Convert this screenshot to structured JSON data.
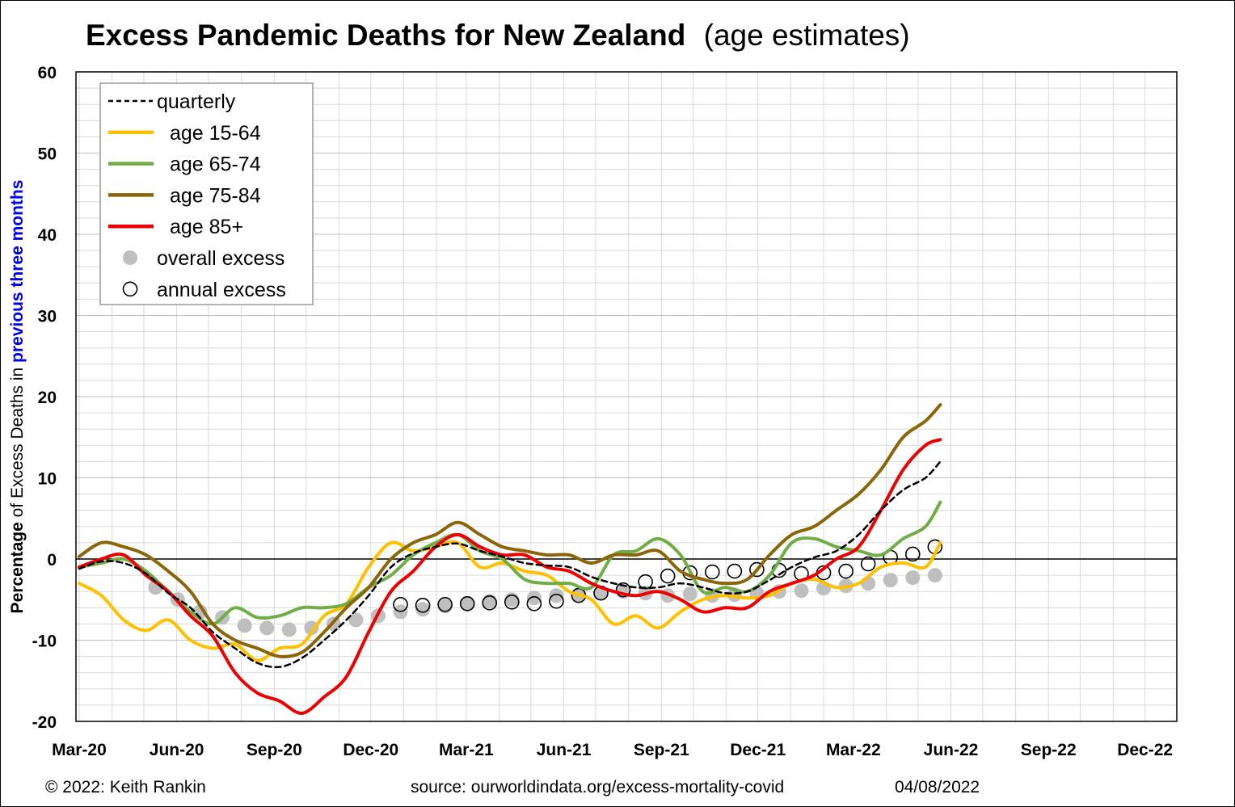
{
  "title_main": "Excess Pandemic Deaths for New Zealand",
  "title_sub": "(age estimates)",
  "ylabel_parts": {
    "bold1": "Percentage",
    "normal": " of Excess Deaths in ",
    "blue": "previous three months"
  },
  "footer": {
    "copyright": "© 2022: Keith Rankin",
    "source": "source: ourworldindata.org/excess-mortality-covid",
    "date": "04/08/2022"
  },
  "colors": {
    "quarterly": "#000000",
    "age_15_64": "#FFC000",
    "age_65_74": "#70AD47",
    "age_75_84": "#8B6508",
    "age_85_plus": "#EE0000",
    "overall": "#BFBFBF",
    "annual": "#000000",
    "ylabel_blue": "#0000EE"
  },
  "chart_data": {
    "type": "line",
    "title": "Excess Pandemic Deaths for New Zealand (age estimates)",
    "xlabel": "",
    "ylabel": "Percentage of Excess Deaths in previous three months",
    "ylim": [
      -20,
      60
    ],
    "yticks": [
      "60",
      "50",
      "40",
      "30",
      "20",
      "10",
      "0",
      "-10",
      "-20"
    ],
    "xlim": [
      "2020-02-27",
      "2022-12-31"
    ],
    "xticks": [
      "Mar-20",
      "Jun-20",
      "Sep-20",
      "Dec-20",
      "Mar-21",
      "Jun-21",
      "Sep-21",
      "Dec-21",
      "Mar-22",
      "Jun-22",
      "Sep-22",
      "Dec-22"
    ],
    "grid": true,
    "legend_position": "top-left",
    "legend": [
      "quarterly",
      "age 15-64",
      "age 65-74",
      "age 75-84",
      "age 85+",
      "overall excess",
      "annual excess"
    ],
    "series": [
      {
        "name": "quarterly",
        "style": "dashed",
        "x": [
          "2020-03-01",
          "2020-03-22",
          "2020-04-12",
          "2020-05-03",
          "2020-05-24",
          "2020-06-14",
          "2020-07-05",
          "2020-07-26",
          "2020-08-16",
          "2020-09-06",
          "2020-09-27",
          "2020-10-18",
          "2020-11-08",
          "2020-11-29",
          "2020-12-20",
          "2021-01-10",
          "2021-01-31",
          "2021-02-21",
          "2021-03-14",
          "2021-04-04",
          "2021-04-25",
          "2021-05-16",
          "2021-06-06",
          "2021-06-27",
          "2021-07-18",
          "2021-08-08",
          "2021-08-29",
          "2021-09-19",
          "2021-10-10",
          "2021-10-31",
          "2021-11-21",
          "2021-12-12",
          "2022-01-02",
          "2022-01-23",
          "2022-02-13",
          "2022-03-06",
          "2022-03-27",
          "2022-04-17",
          "2022-05-08",
          "2022-05-22"
        ],
        "values": [
          -1.2,
          -0.3,
          -0.5,
          -1.8,
          -4.2,
          -6.0,
          -9.0,
          -11.0,
          -12.8,
          -13.3,
          -12.2,
          -10.0,
          -7.5,
          -4.5,
          -1.0,
          0.7,
          1.5,
          1.9,
          1.0,
          0.3,
          -0.5,
          -0.8,
          -1.0,
          -2.2,
          -3.0,
          -3.5,
          -3.5,
          -3.0,
          -3.5,
          -4.2,
          -4.0,
          -2.6,
          -1.0,
          0.2,
          1.0,
          3.0,
          6.0,
          8.5,
          10.0,
          12.0
        ]
      },
      {
        "name": "age 15-64",
        "x": [
          "2020-03-01",
          "2020-03-22",
          "2020-04-12",
          "2020-05-03",
          "2020-05-24",
          "2020-06-14",
          "2020-07-05",
          "2020-07-26",
          "2020-08-16",
          "2020-09-06",
          "2020-09-27",
          "2020-10-18",
          "2020-11-08",
          "2020-11-29",
          "2020-12-20",
          "2021-01-10",
          "2021-01-31",
          "2021-02-21",
          "2021-03-14",
          "2021-04-04",
          "2021-04-25",
          "2021-05-16",
          "2021-06-06",
          "2021-06-27",
          "2021-07-18",
          "2021-08-08",
          "2021-08-29",
          "2021-09-19",
          "2021-10-10",
          "2021-10-31",
          "2021-11-21",
          "2021-12-12",
          "2022-01-02",
          "2022-01-23",
          "2022-02-13",
          "2022-03-06",
          "2022-03-27",
          "2022-04-17",
          "2022-05-08",
          "2022-05-22"
        ],
        "values": [
          -3.0,
          -4.5,
          -7.5,
          -8.8,
          -7.5,
          -10.0,
          -11.0,
          -10.5,
          -12.5,
          -11.0,
          -10.5,
          -7.0,
          -5.5,
          -1.0,
          2.0,
          1.0,
          1.5,
          2.0,
          -1.0,
          -0.5,
          -1.5,
          -2.0,
          -4.0,
          -5.0,
          -8.0,
          -7.0,
          -8.5,
          -6.5,
          -5.0,
          -4.5,
          -4.8,
          -4.5,
          -3.0,
          -2.5,
          -3.5,
          -3.0,
          -1.0,
          -0.5,
          -1.0,
          2.0
        ]
      },
      {
        "name": "age 65-74",
        "x": [
          "2020-03-01",
          "2020-03-22",
          "2020-04-12",
          "2020-05-03",
          "2020-05-24",
          "2020-06-14",
          "2020-07-05",
          "2020-07-26",
          "2020-08-16",
          "2020-09-06",
          "2020-09-27",
          "2020-10-18",
          "2020-11-08",
          "2020-11-29",
          "2020-12-20",
          "2021-01-10",
          "2021-01-31",
          "2021-02-21",
          "2021-03-14",
          "2021-04-04",
          "2021-04-25",
          "2021-05-16",
          "2021-06-06",
          "2021-06-27",
          "2021-07-18",
          "2021-08-08",
          "2021-08-29",
          "2021-09-19",
          "2021-10-10",
          "2021-10-31",
          "2021-11-21",
          "2021-12-12",
          "2022-01-02",
          "2022-01-23",
          "2022-02-13",
          "2022-03-06",
          "2022-03-27",
          "2022-04-17",
          "2022-05-08",
          "2022-05-22"
        ],
        "values": [
          -1.0,
          -0.5,
          0.0,
          -1.5,
          -4.0,
          -6.5,
          -8.0,
          -6.0,
          -7.2,
          -7.0,
          -6.0,
          -6.0,
          -5.5,
          -3.5,
          -2.0,
          0.5,
          2.0,
          3.0,
          1.0,
          0.0,
          -2.5,
          -3.0,
          -3.0,
          -3.5,
          0.5,
          1.0,
          2.5,
          0.5,
          -4.0,
          -3.5,
          -4.0,
          -2.0,
          2.0,
          2.5,
          1.5,
          1.0,
          0.5,
          2.5,
          4.0,
          7.0
        ]
      },
      {
        "name": "age 75-84",
        "x": [
          "2020-03-01",
          "2020-03-22",
          "2020-04-12",
          "2020-05-03",
          "2020-05-24",
          "2020-06-14",
          "2020-07-05",
          "2020-07-26",
          "2020-08-16",
          "2020-09-06",
          "2020-09-27",
          "2020-10-18",
          "2020-11-08",
          "2020-11-29",
          "2020-12-20",
          "2021-01-10",
          "2021-01-31",
          "2021-02-21",
          "2021-03-14",
          "2021-04-04",
          "2021-04-25",
          "2021-05-16",
          "2021-06-06",
          "2021-06-27",
          "2021-07-18",
          "2021-08-08",
          "2021-08-29",
          "2021-09-19",
          "2021-10-10",
          "2021-10-31",
          "2021-11-21",
          "2021-12-12",
          "2022-01-02",
          "2022-01-23",
          "2022-02-13",
          "2022-03-06",
          "2022-03-27",
          "2022-04-17",
          "2022-05-08",
          "2022-05-22"
        ],
        "values": [
          0.3,
          2.0,
          1.5,
          0.5,
          -1.5,
          -4.0,
          -8.0,
          -10.0,
          -11.0,
          -12.0,
          -11.5,
          -9.0,
          -6.0,
          -3.5,
          0.0,
          2.0,
          3.0,
          4.5,
          3.0,
          1.5,
          1.0,
          0.5,
          0.5,
          -0.5,
          0.5,
          0.5,
          1.0,
          -1.5,
          -2.5,
          -3.0,
          -2.5,
          0.5,
          3.0,
          4.0,
          6.0,
          8.0,
          11.0,
          15.0,
          17.0,
          19.0
        ]
      },
      {
        "name": "age 85+",
        "x": [
          "2020-03-01",
          "2020-03-22",
          "2020-04-12",
          "2020-05-03",
          "2020-05-24",
          "2020-06-14",
          "2020-07-05",
          "2020-07-26",
          "2020-08-16",
          "2020-09-06",
          "2020-09-27",
          "2020-10-18",
          "2020-11-08",
          "2020-11-29",
          "2020-12-20",
          "2021-01-10",
          "2021-01-31",
          "2021-02-21",
          "2021-03-14",
          "2021-04-04",
          "2021-04-25",
          "2021-05-16",
          "2021-06-06",
          "2021-06-27",
          "2021-07-18",
          "2021-08-08",
          "2021-08-29",
          "2021-09-19",
          "2021-10-10",
          "2021-10-31",
          "2021-11-21",
          "2021-12-12",
          "2022-01-02",
          "2022-01-23",
          "2022-02-13",
          "2022-03-06",
          "2022-03-27",
          "2022-04-17",
          "2022-05-08",
          "2022-05-22"
        ],
        "values": [
          -1.0,
          0.0,
          0.5,
          -2.0,
          -4.0,
          -7.0,
          -9.5,
          -14.0,
          -16.5,
          -17.5,
          -19.0,
          -17.0,
          -14.5,
          -9.0,
          -4.0,
          -1.5,
          1.5,
          3.0,
          1.5,
          0.5,
          0.5,
          -1.0,
          -1.5,
          -3.0,
          -4.0,
          -4.5,
          -4.0,
          -5.0,
          -6.5,
          -6.0,
          -6.0,
          -4.0,
          -3.0,
          -2.0,
          0.0,
          1.5,
          6.0,
          11.0,
          14.0,
          14.7
        ]
      }
    ],
    "points": [
      {
        "name": "overall excess",
        "x": [
          "2020-05-12",
          "2020-06-02",
          "2020-06-23",
          "2020-07-14",
          "2020-08-04",
          "2020-08-25",
          "2020-09-15",
          "2020-10-06",
          "2020-10-27",
          "2020-11-17",
          "2020-12-08",
          "2020-12-29",
          "2021-01-19",
          "2021-02-09",
          "2021-03-02",
          "2021-03-23",
          "2021-04-13",
          "2021-05-04",
          "2021-05-25",
          "2021-06-15",
          "2021-07-06",
          "2021-07-27",
          "2021-08-17",
          "2021-09-07",
          "2021-09-28",
          "2021-10-19",
          "2021-11-09",
          "2021-11-30",
          "2021-12-21",
          "2022-01-11",
          "2022-02-01",
          "2022-02-22",
          "2022-03-15",
          "2022-04-05",
          "2022-04-26",
          "2022-05-17"
        ],
        "values": [
          -3.5,
          -5.0,
          -6.5,
          -7.2,
          -8.2,
          -8.5,
          -8.7,
          -8.5,
          -8.0,
          -7.5,
          -7.0,
          -6.5,
          -6.2,
          -5.8,
          -5.5,
          -5.2,
          -5.0,
          -4.8,
          -4.5,
          -4.4,
          -4.2,
          -4.0,
          -4.2,
          -4.5,
          -4.3,
          -4.5,
          -4.4,
          -4.2,
          -4.0,
          -3.9,
          -3.6,
          -3.3,
          -3.0,
          -2.6,
          -2.3,
          -2.0
        ]
      },
      {
        "name": "annual excess",
        "x": [
          "2020-12-29",
          "2021-01-19",
          "2021-02-09",
          "2021-03-02",
          "2021-03-23",
          "2021-04-13",
          "2021-05-04",
          "2021-05-25",
          "2021-06-15",
          "2021-07-06",
          "2021-07-27",
          "2021-08-17",
          "2021-09-07",
          "2021-09-28",
          "2021-10-19",
          "2021-11-09",
          "2021-11-30",
          "2021-12-21",
          "2022-01-11",
          "2022-02-01",
          "2022-02-22",
          "2022-03-15",
          "2022-04-05",
          "2022-04-26",
          "2022-05-17"
        ],
        "values": [
          -5.6,
          -5.7,
          -5.6,
          -5.5,
          -5.4,
          -5.3,
          -5.5,
          -5.2,
          -4.5,
          -4.2,
          -3.8,
          -2.8,
          -2.1,
          -1.7,
          -1.6,
          -1.5,
          -1.3,
          -1.4,
          -1.8,
          -1.7,
          -1.5,
          -0.6,
          0.2,
          0.6,
          1.5
        ]
      }
    ]
  }
}
